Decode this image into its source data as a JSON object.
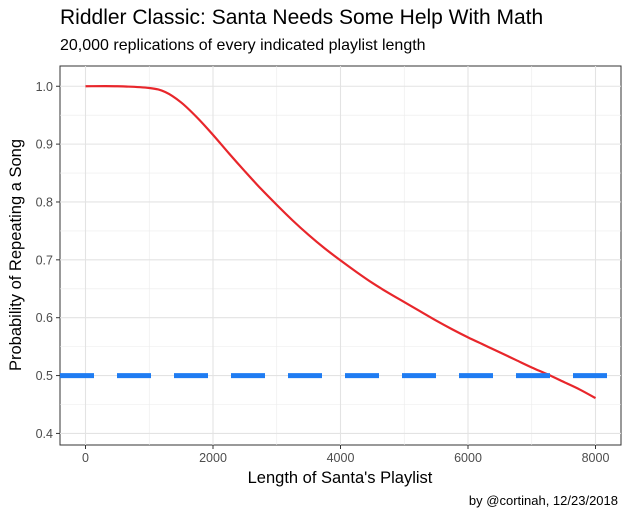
{
  "chart_data": {
    "type": "line",
    "title": "Riddler Classic: Santa Needs Some Help With Math",
    "subtitle": "20,000 replications of every indicated playlist length",
    "caption": "by @cortinah, 12/23/2018",
    "xlabel": "Length of Santa's Playlist",
    "ylabel": "Probability of Repeating a Song",
    "xlim": [
      -400,
      8400
    ],
    "ylim": [
      0.38,
      1.035
    ],
    "xticks": [
      0,
      2000,
      4000,
      6000,
      8000
    ],
    "xtick_labels": [
      "0",
      "2000",
      "4000",
      "6000",
      "8000"
    ],
    "yticks": [
      0.4,
      0.5,
      0.6,
      0.7,
      0.8,
      0.9,
      1.0
    ],
    "ytick_labels": [
      "0.4",
      "0.5",
      "0.6",
      "0.7",
      "0.8",
      "0.9",
      "1.0"
    ],
    "grid": true,
    "series": [
      {
        "color": "#e8262b",
        "x": [
          0,
          500,
          1000,
          1250,
          1500,
          1750,
          2000,
          2250,
          2500,
          2750,
          3000,
          3250,
          3500,
          3750,
          4000,
          4250,
          4500,
          4750,
          5000,
          5250,
          5500,
          5750,
          6000,
          6250,
          6500,
          6750,
          7000,
          7250,
          7500,
          7750,
          8000
        ],
        "y": [
          1.0,
          1.0,
          0.997,
          0.99,
          0.972,
          0.946,
          0.916,
          0.884,
          0.853,
          0.823,
          0.795,
          0.768,
          0.743,
          0.72,
          0.699,
          0.679,
          0.66,
          0.643,
          0.627,
          0.611,
          0.595,
          0.58,
          0.566,
          0.553,
          0.54,
          0.527,
          0.514,
          0.502,
          0.489,
          0.476,
          0.461
        ]
      }
    ],
    "reference_line": {
      "y": 0.5,
      "color": "#1f7cf2",
      "style": "dashed"
    }
  }
}
